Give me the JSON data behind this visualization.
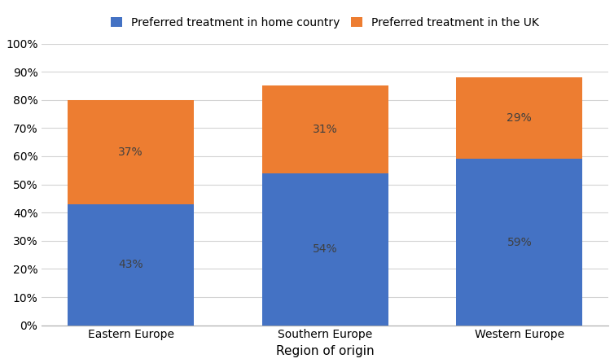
{
  "categories": [
    "Eastern Europe",
    "Southern Europe",
    "Western Europe"
  ],
  "home_country": [
    43,
    54,
    59
  ],
  "uk": [
    37,
    31,
    29
  ],
  "home_color": "#4472C4",
  "uk_color": "#ED7D31",
  "legend_labels": [
    "Preferred treatment in home country",
    "Preferred treatment in the UK"
  ],
  "xlabel": "Region of origin",
  "ylim": [
    0,
    100
  ],
  "yticks": [
    0,
    10,
    20,
    30,
    40,
    50,
    60,
    70,
    80,
    90,
    100
  ],
  "ytick_labels": [
    "0%",
    "10%",
    "20%",
    "30%",
    "40%",
    "50%",
    "60%",
    "70%",
    "80%",
    "90%",
    "100%"
  ],
  "bar_width": 0.65,
  "label_fontsize": 10,
  "axis_label_fontsize": 11,
  "legend_fontsize": 10,
  "tick_fontsize": 10,
  "label_color": "#404040",
  "background_color": "#ffffff",
  "grid_color": "#d3d3d3"
}
